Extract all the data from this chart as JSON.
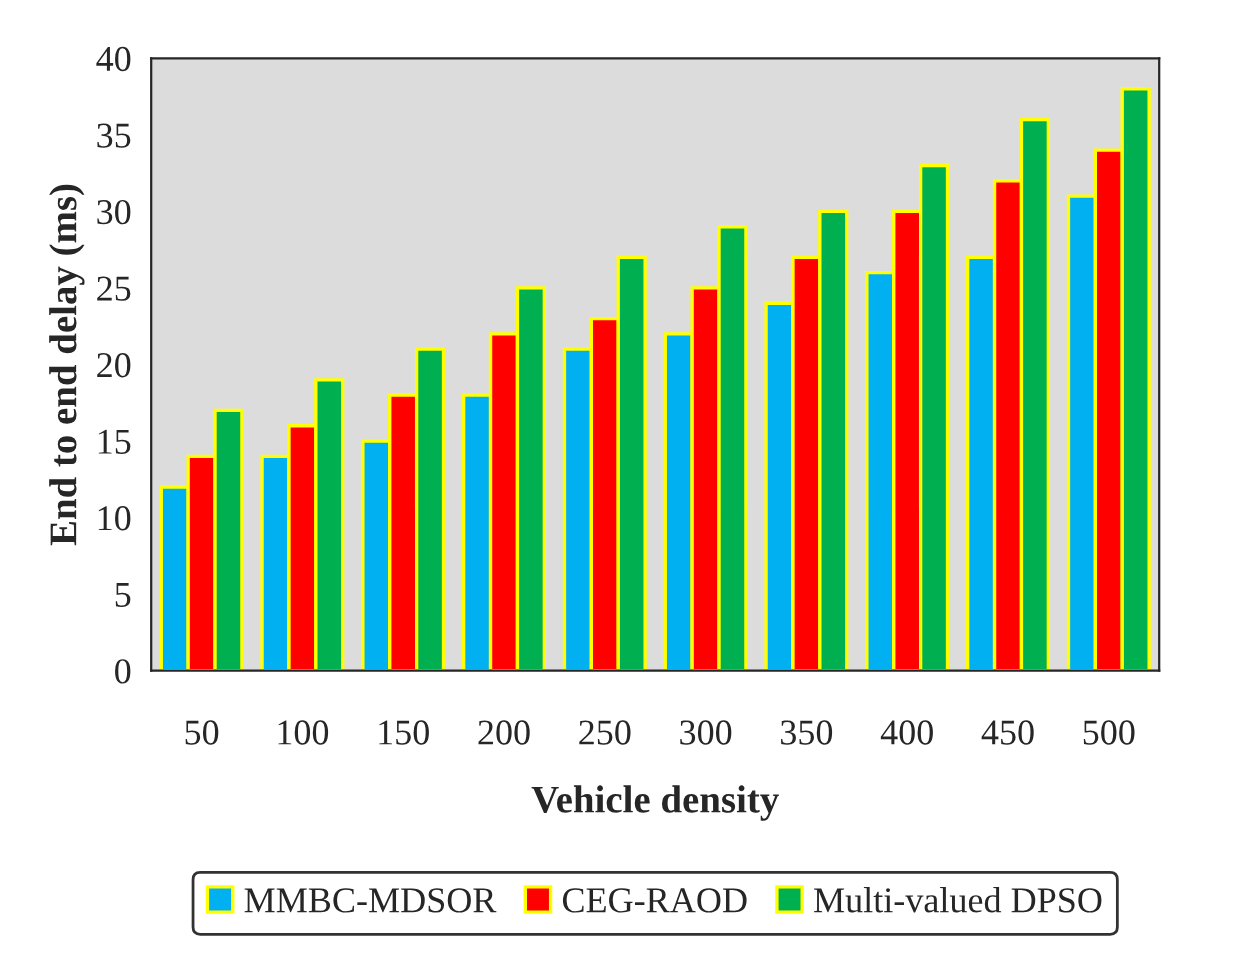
{
  "chart_data": {
    "type": "bar",
    "xlabel": "Vehicle density",
    "ylabel": "End to end delay (ms)",
    "categories": [
      "50",
      "100",
      "150",
      "200",
      "250",
      "300",
      "350",
      "400",
      "450",
      "500"
    ],
    "series": [
      {
        "name": "MMBC-MDSOR",
        "color": "#00b0f0",
        "values": [
          12,
          14,
          15,
          18,
          21,
          22,
          24,
          26,
          27,
          31
        ]
      },
      {
        "name": "CEG-RAOD",
        "color": "#ff0000",
        "values": [
          14,
          16,
          18,
          22,
          23,
          25,
          27,
          30,
          32,
          34
        ]
      },
      {
        "name": "Multi-valued DPSO",
        "color": "#00b050",
        "values": [
          17,
          19,
          21,
          25,
          27,
          29,
          30,
          33,
          36,
          38
        ]
      }
    ],
    "ylim": [
      0,
      40
    ],
    "yticks": [
      0,
      5,
      10,
      15,
      20,
      25,
      30,
      35,
      40
    ],
    "grid": false,
    "legend": "bottom"
  }
}
